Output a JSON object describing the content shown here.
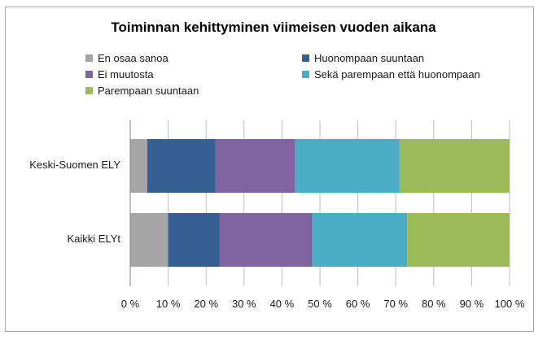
{
  "chart_data": {
    "type": "bar",
    "orientation": "horizontal",
    "stacked": true,
    "percent": true,
    "title": "Toiminnan kehittyminen viimeisen vuoden aikana",
    "categories": [
      "Keski-Suomen ELY",
      "Kaikki ELYt"
    ],
    "series": [
      {
        "name": "En osaa sanoa",
        "color": "#a5a5a5",
        "values": [
          4.5,
          10
        ]
      },
      {
        "name": "Huonompaan suuntaan",
        "color": "#335f93",
        "values": [
          18,
          13.5
        ]
      },
      {
        "name": "Ei muutosta",
        "color": "#8064a2",
        "values": [
          21,
          24.5
        ]
      },
      {
        "name": "Sekä parempaan että huonompaan",
        "color": "#4bacc6",
        "values": [
          27.5,
          25
        ]
      },
      {
        "name": "Parempaan suuntaan",
        "color": "#9bbb59",
        "values": [
          29,
          27
        ]
      }
    ],
    "xlim": [
      0,
      100
    ],
    "x_ticks": [
      "0 %",
      "10 %",
      "20 %",
      "30 %",
      "40 %",
      "50 %",
      "60 %",
      "70 %",
      "80 %",
      "90 %",
      "100 %"
    ],
    "grid": true,
    "legend_position": "top"
  }
}
